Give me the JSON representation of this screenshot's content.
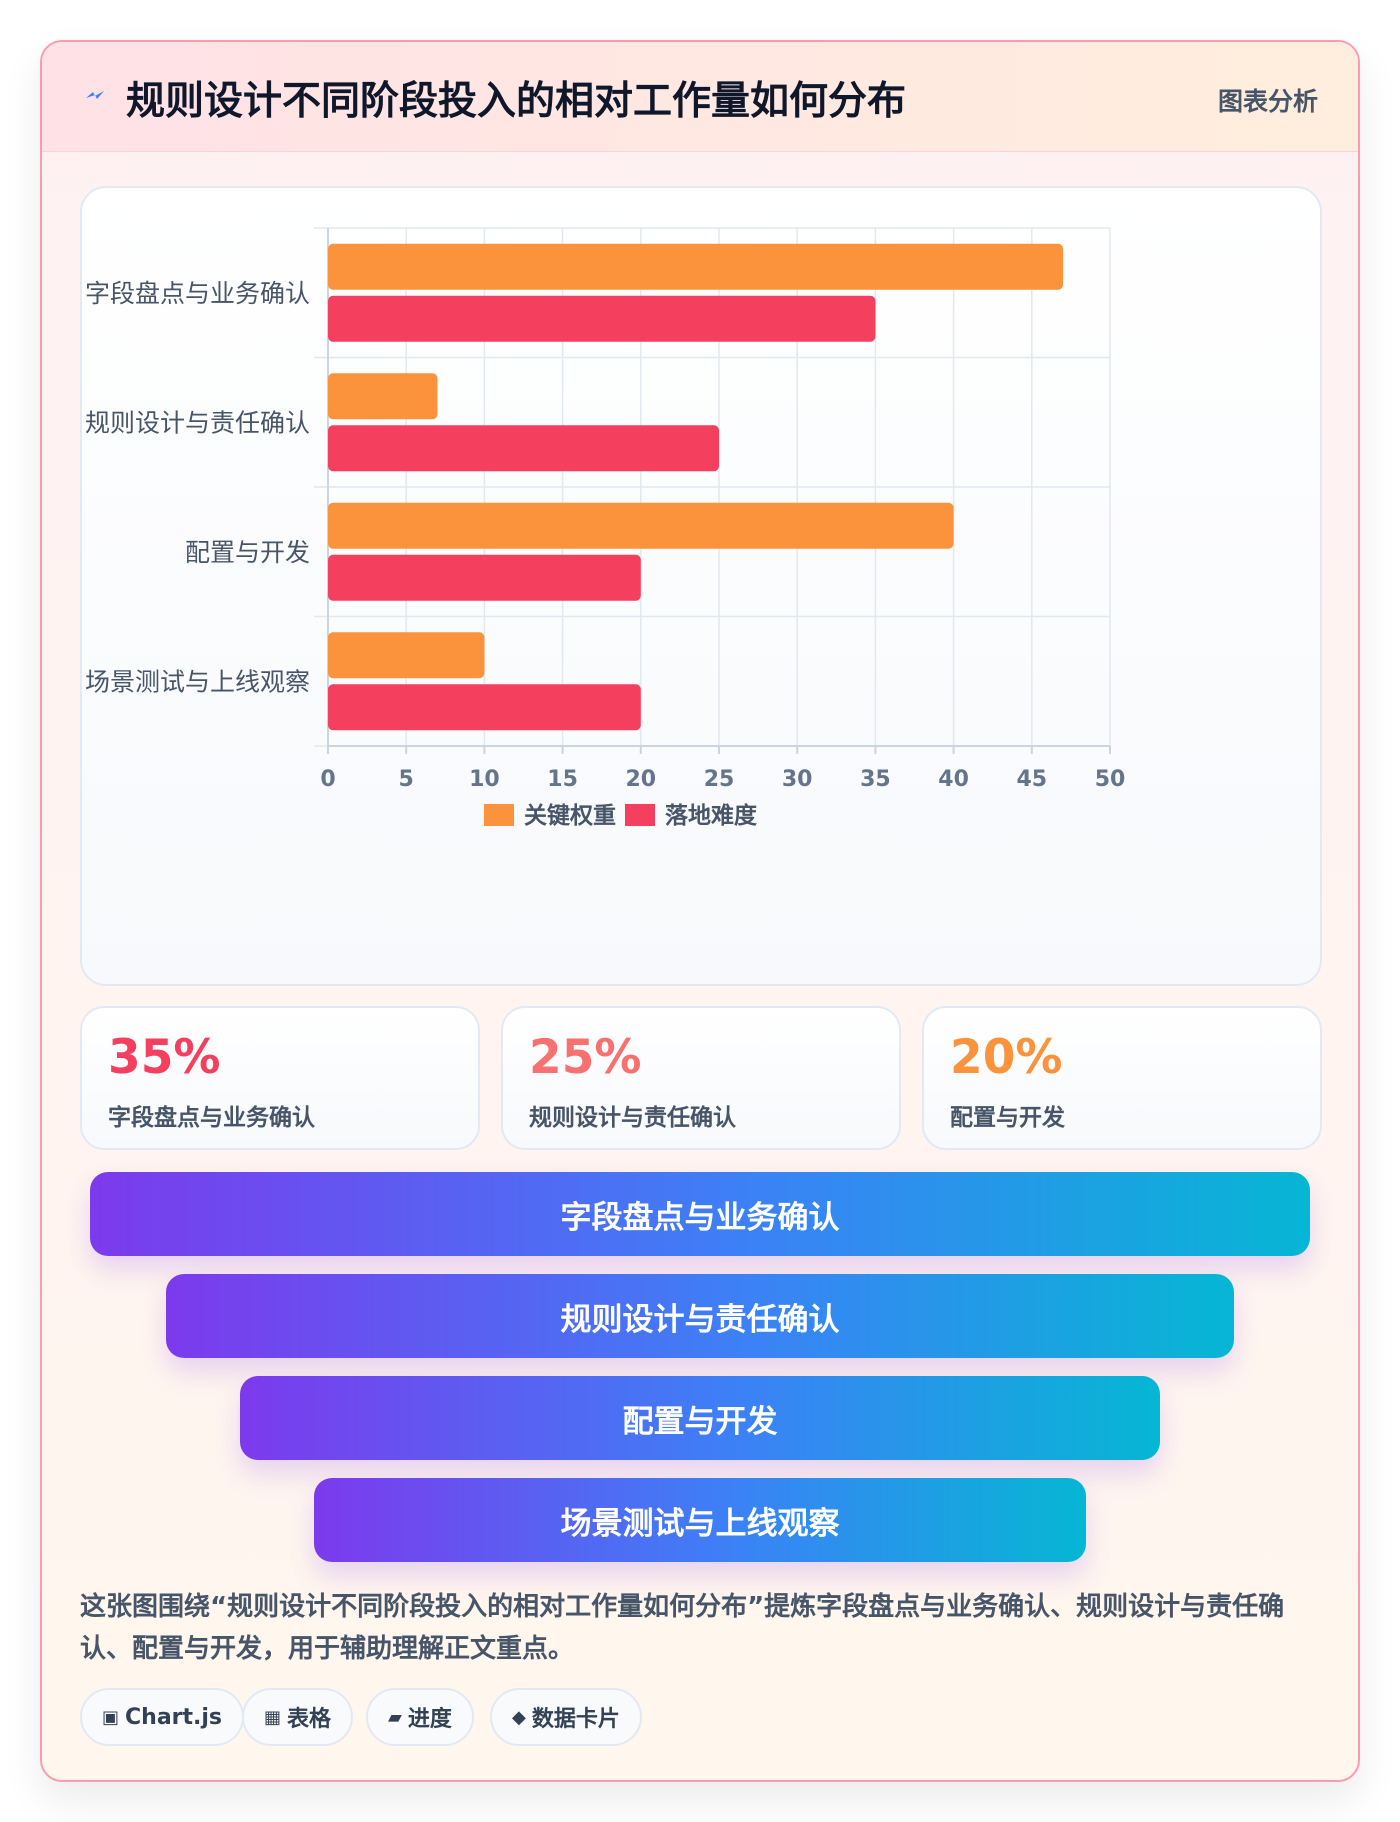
{
  "header": {
    "title": "规则设计不同阶段投入的相对工作量如何分布",
    "tag": "图表分析",
    "accent": "#3b82f6"
  },
  "chart_data": {
    "type": "bar",
    "orientation": "horizontal",
    "categories": [
      "字段盘点与业务确认",
      "规则设计与责任确认",
      "配置与开发",
      "场景测试与上线观察"
    ],
    "series": [
      {
        "name": "关键权重",
        "color": "#fb923c",
        "values": [
          47,
          7,
          40,
          10
        ]
      },
      {
        "name": "落地难度",
        "color": "#f43f5e",
        "values": [
          35,
          25,
          20,
          20
        ]
      }
    ],
    "xlim": [
      0,
      50
    ],
    "xticks": [
      0,
      5,
      10,
      15,
      20,
      25,
      30,
      35,
      40,
      45,
      50
    ],
    "grid": true,
    "legend_position": "bottom"
  },
  "stats": [
    {
      "value": "35%",
      "label": "字段盘点与业务确认",
      "color": "#f43f5e"
    },
    {
      "value": "25%",
      "label": "规则设计与责任确认",
      "color": "#f87171"
    },
    {
      "value": "20%",
      "label": "配置与开发",
      "color": "#fb923c"
    }
  ],
  "funnel": [
    "字段盘点与业务确认",
    "规则设计与责任确认",
    "配置与开发",
    "场景测试与上线观察"
  ],
  "summary": "这张图围绕“规则设计不同阶段投入的相对工作量如何分布”提炼字段盘点与业务确认、规则设计与责任确认、配置与开发，用于辅助理解正文重点。",
  "chips": [
    {
      "icon": "chart-icon",
      "glyph": "▣",
      "label": "Chart.js"
    },
    {
      "icon": "table-icon",
      "glyph": "▦",
      "label": "表格"
    },
    {
      "icon": "progress-icon",
      "glyph": "▰",
      "label": "进度"
    },
    {
      "icon": "card-icon",
      "glyph": "◆",
      "label": "数据卡片"
    }
  ]
}
